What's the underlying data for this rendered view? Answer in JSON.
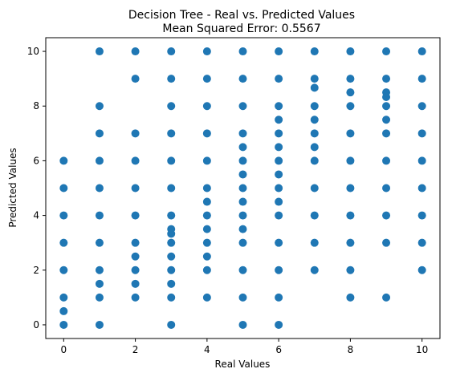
{
  "chart_data": {
    "type": "scatter",
    "title": "Decision Tree - Real vs. Predicted Values",
    "subtitle": "Mean Squared Error: 0.5567",
    "xlabel": "Real Values",
    "ylabel": "Predicted Values",
    "xlim": [
      -0.5,
      10.5
    ],
    "ylim": [
      -0.5,
      10.5
    ],
    "xticks": [
      0,
      2,
      4,
      6,
      8,
      10
    ],
    "yticks": [
      0,
      2,
      4,
      6,
      8,
      10
    ],
    "grid": false,
    "color": "#1f77b4",
    "points": [
      {
        "x": 0,
        "y": 0
      },
      {
        "x": 0,
        "y": 0.5
      },
      {
        "x": 0,
        "y": 1
      },
      {
        "x": 0,
        "y": 2
      },
      {
        "x": 0,
        "y": 3
      },
      {
        "x": 0,
        "y": 4
      },
      {
        "x": 0,
        "y": 5
      },
      {
        "x": 0,
        "y": 6
      },
      {
        "x": 1,
        "y": 0
      },
      {
        "x": 1,
        "y": 1
      },
      {
        "x": 1,
        "y": 1.5
      },
      {
        "x": 1,
        "y": 2
      },
      {
        "x": 1,
        "y": 3
      },
      {
        "x": 1,
        "y": 4
      },
      {
        "x": 1,
        "y": 5
      },
      {
        "x": 1,
        "y": 6
      },
      {
        "x": 1,
        "y": 7
      },
      {
        "x": 1,
        "y": 8
      },
      {
        "x": 1,
        "y": 10
      },
      {
        "x": 2,
        "y": 1
      },
      {
        "x": 2,
        "y": 1.5
      },
      {
        "x": 2,
        "y": 2
      },
      {
        "x": 2,
        "y": 2.5
      },
      {
        "x": 2,
        "y": 3
      },
      {
        "x": 2,
        "y": 4
      },
      {
        "x": 2,
        "y": 5
      },
      {
        "x": 2,
        "y": 6
      },
      {
        "x": 2,
        "y": 7
      },
      {
        "x": 2,
        "y": 9
      },
      {
        "x": 2,
        "y": 10
      },
      {
        "x": 3,
        "y": 0
      },
      {
        "x": 3,
        "y": 1
      },
      {
        "x": 3,
        "y": 1.5
      },
      {
        "x": 3,
        "y": 2
      },
      {
        "x": 3,
        "y": 2.5
      },
      {
        "x": 3,
        "y": 3
      },
      {
        "x": 3,
        "y": 3.33
      },
      {
        "x": 3,
        "y": 3.5
      },
      {
        "x": 3,
        "y": 4
      },
      {
        "x": 3,
        "y": 5
      },
      {
        "x": 3,
        "y": 6
      },
      {
        "x": 3,
        "y": 7
      },
      {
        "x": 3,
        "y": 8
      },
      {
        "x": 3,
        "y": 9
      },
      {
        "x": 3,
        "y": 10
      },
      {
        "x": 4,
        "y": 1
      },
      {
        "x": 4,
        "y": 2
      },
      {
        "x": 4,
        "y": 2.5
      },
      {
        "x": 4,
        "y": 3
      },
      {
        "x": 4,
        "y": 3.5
      },
      {
        "x": 4,
        "y": 4
      },
      {
        "x": 4,
        "y": 4.5
      },
      {
        "x": 4,
        "y": 5
      },
      {
        "x": 4,
        "y": 6
      },
      {
        "x": 4,
        "y": 7
      },
      {
        "x": 4,
        "y": 8
      },
      {
        "x": 4,
        "y": 9
      },
      {
        "x": 4,
        "y": 10
      },
      {
        "x": 5,
        "y": 0
      },
      {
        "x": 5,
        "y": 1
      },
      {
        "x": 5,
        "y": 2
      },
      {
        "x": 5,
        "y": 3
      },
      {
        "x": 5,
        "y": 3.5
      },
      {
        "x": 5,
        "y": 4
      },
      {
        "x": 5,
        "y": 4.5
      },
      {
        "x": 5,
        "y": 5
      },
      {
        "x": 5,
        "y": 5.5
      },
      {
        "x": 5,
        "y": 6
      },
      {
        "x": 5,
        "y": 6.5
      },
      {
        "x": 5,
        "y": 7
      },
      {
        "x": 5,
        "y": 8
      },
      {
        "x": 5,
        "y": 9
      },
      {
        "x": 5,
        "y": 10
      },
      {
        "x": 6,
        "y": 0
      },
      {
        "x": 6,
        "y": 1
      },
      {
        "x": 6,
        "y": 2
      },
      {
        "x": 6,
        "y": 3
      },
      {
        "x": 6,
        "y": 4
      },
      {
        "x": 6,
        "y": 4.5
      },
      {
        "x": 6,
        "y": 5
      },
      {
        "x": 6,
        "y": 5.5
      },
      {
        "x": 6,
        "y": 6
      },
      {
        "x": 6,
        "y": 6.5
      },
      {
        "x": 6,
        "y": 7
      },
      {
        "x": 6,
        "y": 7.5
      },
      {
        "x": 6,
        "y": 8
      },
      {
        "x": 6,
        "y": 9
      },
      {
        "x": 6,
        "y": 10
      },
      {
        "x": 7,
        "y": 2
      },
      {
        "x": 7,
        "y": 3
      },
      {
        "x": 7,
        "y": 4
      },
      {
        "x": 7,
        "y": 5
      },
      {
        "x": 7,
        "y": 6
      },
      {
        "x": 7,
        "y": 6.5
      },
      {
        "x": 7,
        "y": 7
      },
      {
        "x": 7,
        "y": 7.5
      },
      {
        "x": 7,
        "y": 8
      },
      {
        "x": 7,
        "y": 8.67
      },
      {
        "x": 7,
        "y": 9
      },
      {
        "x": 7,
        "y": 10
      },
      {
        "x": 8,
        "y": 1
      },
      {
        "x": 8,
        "y": 2
      },
      {
        "x": 8,
        "y": 3
      },
      {
        "x": 8,
        "y": 4
      },
      {
        "x": 8,
        "y": 5
      },
      {
        "x": 8,
        "y": 6
      },
      {
        "x": 8,
        "y": 7
      },
      {
        "x": 8,
        "y": 8
      },
      {
        "x": 8,
        "y": 8.5
      },
      {
        "x": 8,
        "y": 9
      },
      {
        "x": 8,
        "y": 10
      },
      {
        "x": 9,
        "y": 1
      },
      {
        "x": 9,
        "y": 3
      },
      {
        "x": 9,
        "y": 4
      },
      {
        "x": 9,
        "y": 5
      },
      {
        "x": 9,
        "y": 6
      },
      {
        "x": 9,
        "y": 7
      },
      {
        "x": 9,
        "y": 7.5
      },
      {
        "x": 9,
        "y": 8
      },
      {
        "x": 9,
        "y": 8.33
      },
      {
        "x": 9,
        "y": 8.5
      },
      {
        "x": 9,
        "y": 9
      },
      {
        "x": 9,
        "y": 10
      },
      {
        "x": 10,
        "y": 2
      },
      {
        "x": 10,
        "y": 3
      },
      {
        "x": 10,
        "y": 4
      },
      {
        "x": 10,
        "y": 5
      },
      {
        "x": 10,
        "y": 6
      },
      {
        "x": 10,
        "y": 7
      },
      {
        "x": 10,
        "y": 8
      },
      {
        "x": 10,
        "y": 9
      },
      {
        "x": 10,
        "y": 10
      }
    ]
  }
}
